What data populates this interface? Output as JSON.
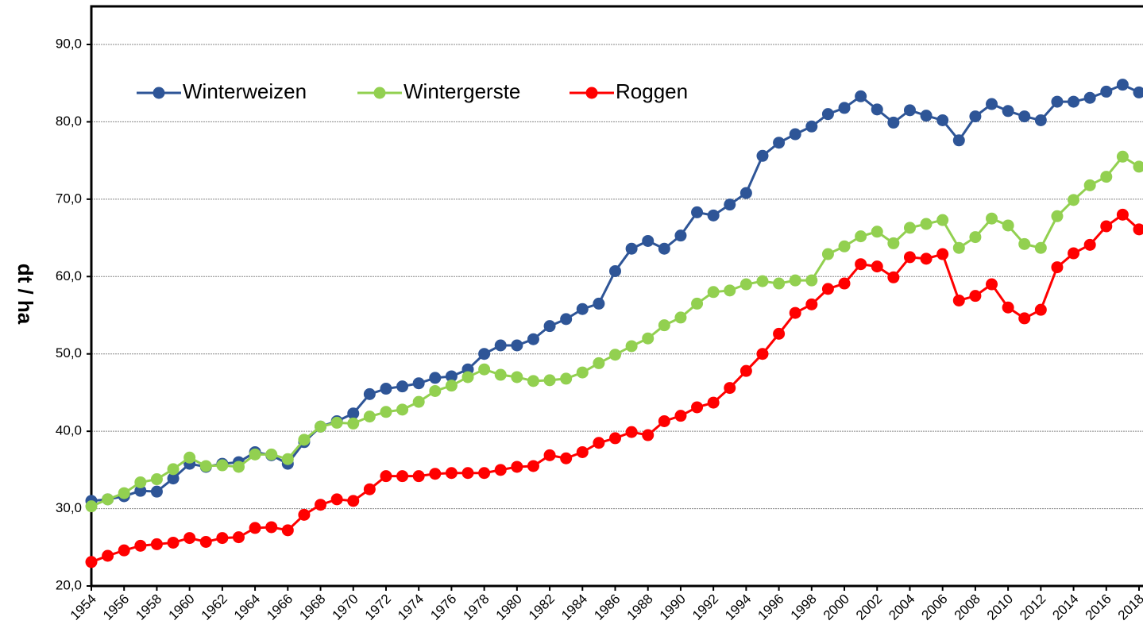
{
  "chart_data": {
    "type": "line",
    "y_label": "dt / ha",
    "x": [
      1954,
      1955,
      1956,
      1957,
      1958,
      1959,
      1960,
      1961,
      1962,
      1963,
      1964,
      1965,
      1966,
      1967,
      1968,
      1969,
      1970,
      1971,
      1972,
      1973,
      1974,
      1975,
      1976,
      1977,
      1978,
      1979,
      1980,
      1981,
      1982,
      1983,
      1984,
      1985,
      1986,
      1987,
      1988,
      1989,
      1990,
      1991,
      1992,
      1993,
      1994,
      1995,
      1996,
      1997,
      1998,
      1999,
      2000,
      2001,
      2002,
      2003,
      2004,
      2005,
      2006,
      2007,
      2008,
      2009,
      2010,
      2011,
      2012,
      2013,
      2014,
      2015,
      2016,
      2017,
      2018
    ],
    "series": [
      {
        "name": "Winterweizen",
        "color": "#2e5597",
        "values": [
          31.0,
          31.2,
          31.6,
          32.3,
          32.2,
          33.9,
          35.8,
          35.4,
          35.8,
          36.0,
          37.3,
          36.9,
          35.8,
          38.6,
          40.6,
          41.3,
          42.3,
          44.8,
          45.5,
          45.8,
          46.2,
          46.9,
          47.1,
          48.0,
          50.0,
          51.1,
          51.1,
          51.9,
          53.6,
          54.5,
          55.8,
          56.5,
          60.7,
          63.6,
          64.6,
          63.6,
          65.3,
          68.3,
          67.9,
          69.3,
          70.8,
          75.6,
          77.3,
          78.4,
          79.4,
          81.0,
          81.8,
          83.3,
          81.6,
          79.9,
          81.5,
          80.8,
          80.2,
          77.6,
          80.7,
          82.3,
          81.4,
          80.7,
          80.2,
          82.6,
          82.6,
          83.1,
          83.9,
          84.8,
          83.8
        ]
      },
      {
        "name": "Wintergerste",
        "color": "#92d050",
        "values": [
          30.3,
          31.2,
          32.0,
          33.4,
          33.8,
          35.1,
          36.6,
          35.5,
          35.6,
          35.4,
          37.0,
          37.0,
          36.4,
          38.9,
          40.6,
          41.1,
          41.0,
          41.9,
          42.5,
          42.8,
          43.8,
          45.2,
          45.9,
          47.0,
          48.0,
          47.3,
          47.0,
          46.5,
          46.6,
          46.8,
          47.6,
          48.8,
          49.9,
          51.0,
          52.0,
          53.7,
          54.7,
          56.5,
          58.0,
          58.2,
          59.0,
          59.4,
          59.1,
          59.5,
          59.5,
          62.9,
          63.9,
          65.2,
          65.8,
          64.3,
          66.3,
          66.8,
          67.3,
          63.7,
          65.1,
          67.5,
          66.6,
          64.2,
          63.7,
          67.8,
          69.9,
          71.8,
          72.9,
          75.5,
          74.2
        ]
      },
      {
        "name": "Roggen",
        "color": "#ff0000",
        "values": [
          23.1,
          23.9,
          24.6,
          25.2,
          25.4,
          25.6,
          26.2,
          25.7,
          26.2,
          26.3,
          27.5,
          27.6,
          27.2,
          29.2,
          30.5,
          31.2,
          31.0,
          32.5,
          34.2,
          34.2,
          34.2,
          34.5,
          34.6,
          34.6,
          34.6,
          35.0,
          35.4,
          35.5,
          36.9,
          36.5,
          37.3,
          38.5,
          39.1,
          39.9,
          39.5,
          41.3,
          42.0,
          43.1,
          43.7,
          45.6,
          47.8,
          50.0,
          52.6,
          55.3,
          56.4,
          58.4,
          59.1,
          61.6,
          61.3,
          59.9,
          62.5,
          62.3,
          62.9,
          56.9,
          57.5,
          59.0,
          56.0,
          54.6,
          55.7,
          61.2,
          63.0,
          64.1,
          66.5,
          68.0,
          66.1
        ]
      }
    ],
    "xlim": [
      1954,
      2018
    ],
    "xticks": [
      1954,
      1956,
      1958,
      1960,
      1962,
      1964,
      1966,
      1968,
      1970,
      1972,
      1974,
      1976,
      1978,
      1980,
      1982,
      1984,
      1986,
      1988,
      1990,
      1992,
      1994,
      1996,
      1998,
      2000,
      2002,
      2004,
      2006,
      2008,
      2010,
      2012,
      2014,
      2016,
      2018
    ],
    "ylim": [
      20,
      90
    ],
    "yticks": [
      {
        "value": 20,
        "label": "20,0"
      },
      {
        "value": 30,
        "label": "30,0"
      },
      {
        "value": 40,
        "label": "40,0"
      },
      {
        "value": 50,
        "label": "50,0"
      },
      {
        "value": 60,
        "label": "60,0"
      },
      {
        "value": 70,
        "label": "70,0"
      },
      {
        "value": 80,
        "label": "80,0"
      },
      {
        "value": 90,
        "label": "90,0"
      }
    ],
    "grid": true,
    "legend": "top-left"
  }
}
